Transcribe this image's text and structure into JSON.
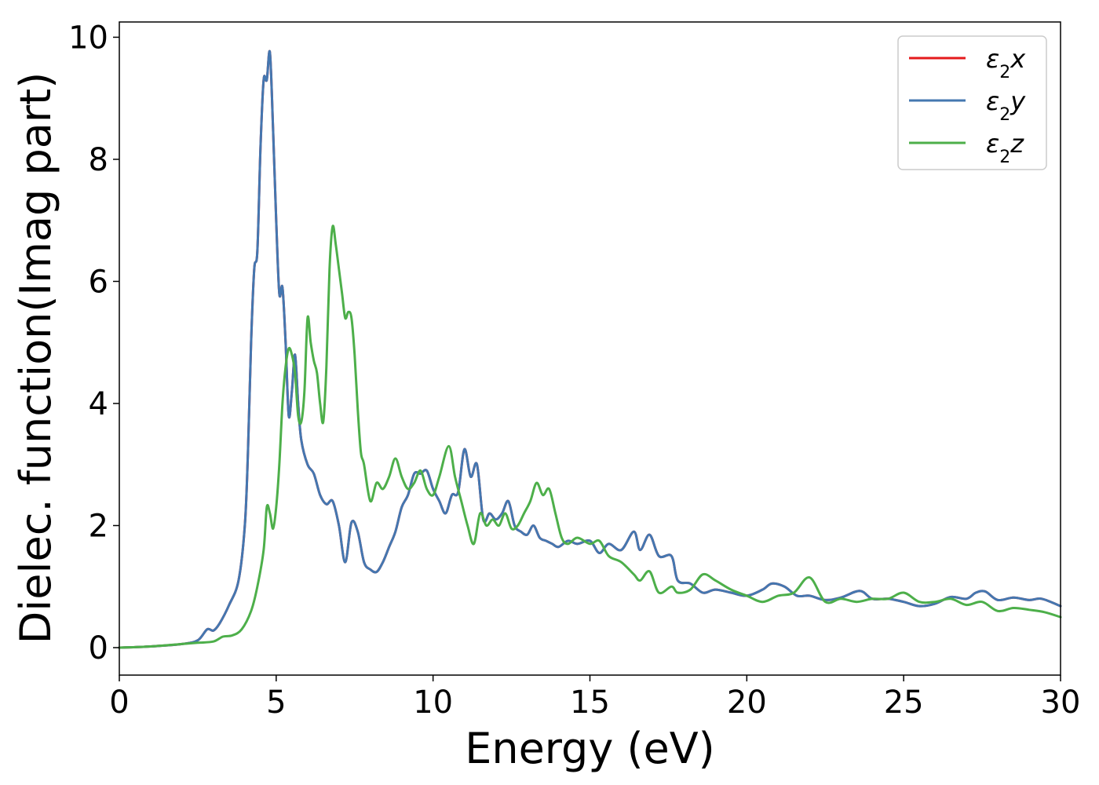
{
  "chart_data": {
    "type": "line",
    "xlabel": "Energy (eV)",
    "ylabel": "Dielec. function(Imag part)",
    "xlim": [
      0,
      30
    ],
    "ylim": [
      -0.45,
      10.25
    ],
    "xticks": [
      0,
      5,
      10,
      15,
      20,
      25,
      30
    ],
    "yticks": [
      0,
      2,
      4,
      6,
      8,
      10
    ],
    "grid": false,
    "legend_position": "top-right",
    "series": [
      {
        "name": "ε2x",
        "legend_base": "ε",
        "legend_sub": "2",
        "legend_var": "x",
        "color": "#e41a1c",
        "x": [
          0,
          1,
          2,
          2.5,
          2.8,
          3,
          3.2,
          3.5,
          3.8,
          4.0,
          4.1,
          4.2,
          4.3,
          4.4,
          4.5,
          4.6,
          4.7,
          4.8,
          4.9,
          5.0,
          5.1,
          5.2,
          5.3,
          5.4,
          5.5,
          5.6,
          5.7,
          5.8,
          6.0,
          6.2,
          6.4,
          6.6,
          6.8,
          7.0,
          7.2,
          7.4,
          7.6,
          7.8,
          8.0,
          8.2,
          8.4,
          8.6,
          8.8,
          9.0,
          9.2,
          9.4,
          9.6,
          9.8,
          10.0,
          10.2,
          10.4,
          10.6,
          10.8,
          11.0,
          11.2,
          11.4,
          11.6,
          11.8,
          12.0,
          12.2,
          12.4,
          12.6,
          12.8,
          13.0,
          13.2,
          13.4,
          13.6,
          13.8,
          14.0,
          14.3,
          14.6,
          15.0,
          15.3,
          15.6,
          16.0,
          16.4,
          16.6,
          16.9,
          17.2,
          17.6,
          17.8,
          18.2,
          18.6,
          19.0,
          19.5,
          20.0,
          20.5,
          20.8,
          21.2,
          21.6,
          22.0,
          22.5,
          23.0,
          23.6,
          24.0,
          24.5,
          25.0,
          25.5,
          26.0,
          26.5,
          27.0,
          27.3,
          27.6,
          28.0,
          28.5,
          29.0,
          29.4,
          30.0
        ],
        "y": [
          0,
          0.02,
          0.06,
          0.12,
          0.3,
          0.28,
          0.4,
          0.7,
          1.1,
          2.0,
          3.2,
          5.0,
          6.2,
          6.5,
          8.2,
          9.3,
          9.3,
          9.75,
          8.5,
          7.0,
          5.8,
          5.9,
          5.0,
          3.8,
          4.2,
          4.8,
          4.0,
          3.4,
          3.0,
          2.85,
          2.5,
          2.35,
          2.4,
          2.0,
          1.4,
          2.05,
          1.9,
          1.4,
          1.28,
          1.24,
          1.4,
          1.65,
          1.9,
          2.3,
          2.5,
          2.85,
          2.85,
          2.9,
          2.6,
          2.4,
          2.2,
          2.5,
          2.55,
          3.25,
          2.8,
          3.0,
          2.1,
          2.2,
          2.1,
          2.2,
          2.4,
          2.0,
          1.9,
          1.85,
          2.0,
          1.8,
          1.75,
          1.7,
          1.65,
          1.75,
          1.7,
          1.75,
          1.55,
          1.7,
          1.6,
          1.9,
          1.6,
          1.85,
          1.5,
          1.5,
          1.1,
          1.05,
          0.9,
          0.95,
          0.9,
          0.85,
          0.95,
          1.05,
          1.0,
          0.85,
          0.85,
          0.78,
          0.82,
          0.93,
          0.8,
          0.8,
          0.75,
          0.68,
          0.72,
          0.83,
          0.8,
          0.9,
          0.92,
          0.78,
          0.82,
          0.78,
          0.8,
          0.68
        ]
      },
      {
        "name": "ε2y",
        "legend_base": "ε",
        "legend_sub": "2",
        "legend_var": "y",
        "color": "#4477b0",
        "x": [
          0,
          1,
          2,
          2.5,
          2.8,
          3,
          3.2,
          3.5,
          3.8,
          4.0,
          4.1,
          4.2,
          4.3,
          4.4,
          4.5,
          4.6,
          4.7,
          4.8,
          4.9,
          5.0,
          5.1,
          5.2,
          5.3,
          5.4,
          5.5,
          5.6,
          5.7,
          5.8,
          6.0,
          6.2,
          6.4,
          6.6,
          6.8,
          7.0,
          7.2,
          7.4,
          7.6,
          7.8,
          8.0,
          8.2,
          8.4,
          8.6,
          8.8,
          9.0,
          9.2,
          9.4,
          9.6,
          9.8,
          10.0,
          10.2,
          10.4,
          10.6,
          10.8,
          11.0,
          11.2,
          11.4,
          11.6,
          11.8,
          12.0,
          12.2,
          12.4,
          12.6,
          12.8,
          13.0,
          13.2,
          13.4,
          13.6,
          13.8,
          14.0,
          14.3,
          14.6,
          15.0,
          15.3,
          15.6,
          16.0,
          16.4,
          16.6,
          16.9,
          17.2,
          17.6,
          17.8,
          18.2,
          18.6,
          19.0,
          19.5,
          20.0,
          20.5,
          20.8,
          21.2,
          21.6,
          22.0,
          22.5,
          23.0,
          23.6,
          24.0,
          24.5,
          25.0,
          25.5,
          26.0,
          26.5,
          27.0,
          27.3,
          27.6,
          28.0,
          28.5,
          29.0,
          29.4,
          30.0
        ],
        "y": [
          0,
          0.02,
          0.06,
          0.12,
          0.3,
          0.28,
          0.4,
          0.7,
          1.1,
          2.0,
          3.2,
          5.0,
          6.2,
          6.5,
          8.2,
          9.3,
          9.3,
          9.75,
          8.5,
          7.0,
          5.8,
          5.9,
          5.0,
          3.8,
          4.2,
          4.8,
          4.0,
          3.4,
          3.0,
          2.85,
          2.5,
          2.35,
          2.4,
          2.0,
          1.4,
          2.05,
          1.9,
          1.4,
          1.28,
          1.24,
          1.4,
          1.65,
          1.9,
          2.3,
          2.5,
          2.85,
          2.85,
          2.9,
          2.6,
          2.4,
          2.2,
          2.5,
          2.55,
          3.25,
          2.8,
          3.0,
          2.1,
          2.2,
          2.1,
          2.2,
          2.4,
          2.0,
          1.9,
          1.85,
          2.0,
          1.8,
          1.75,
          1.7,
          1.65,
          1.75,
          1.7,
          1.75,
          1.55,
          1.7,
          1.6,
          1.9,
          1.6,
          1.85,
          1.5,
          1.5,
          1.1,
          1.05,
          0.9,
          0.95,
          0.9,
          0.85,
          0.95,
          1.05,
          1.0,
          0.85,
          0.85,
          0.78,
          0.82,
          0.93,
          0.8,
          0.8,
          0.75,
          0.68,
          0.72,
          0.83,
          0.8,
          0.9,
          0.92,
          0.78,
          0.82,
          0.78,
          0.8,
          0.68
        ]
      },
      {
        "name": "ε2z",
        "legend_base": "ε",
        "legend_sub": "2",
        "legend_var": "z",
        "color": "#4daf4a",
        "x": [
          0,
          1,
          2,
          2.5,
          3.0,
          3.3,
          3.6,
          3.9,
          4.2,
          4.4,
          4.6,
          4.7,
          4.8,
          4.9,
          5.0,
          5.1,
          5.2,
          5.3,
          5.4,
          5.5,
          5.6,
          5.7,
          5.8,
          5.9,
          6.0,
          6.1,
          6.2,
          6.3,
          6.4,
          6.5,
          6.6,
          6.7,
          6.8,
          6.9,
          7.0,
          7.1,
          7.2,
          7.3,
          7.4,
          7.5,
          7.6,
          7.7,
          7.8,
          8.0,
          8.2,
          8.4,
          8.6,
          8.8,
          9.0,
          9.2,
          9.4,
          9.6,
          9.8,
          10.0,
          10.2,
          10.5,
          10.7,
          10.9,
          11.1,
          11.3,
          11.5,
          11.7,
          11.9,
          12.1,
          12.3,
          12.5,
          12.7,
          12.9,
          13.1,
          13.3,
          13.5,
          13.7,
          13.9,
          14.1,
          14.3,
          14.6,
          15.0,
          15.3,
          15.6,
          16.0,
          16.4,
          16.6,
          16.9,
          17.2,
          17.6,
          17.8,
          18.2,
          18.6,
          19.0,
          19.5,
          20.0,
          20.5,
          21.0,
          21.5,
          22.0,
          22.5,
          23.0,
          23.5,
          24.0,
          24.5,
          25.0,
          25.5,
          26.0,
          26.5,
          27.0,
          27.5,
          28.0,
          28.5,
          29.0,
          29.5,
          30.0
        ],
        "y": [
          0,
          0.02,
          0.06,
          0.08,
          0.1,
          0.18,
          0.2,
          0.3,
          0.6,
          1.0,
          1.6,
          2.3,
          2.2,
          1.95,
          2.3,
          3.0,
          4.0,
          4.6,
          4.9,
          4.8,
          4.5,
          3.8,
          3.7,
          4.2,
          5.4,
          5.0,
          4.7,
          4.5,
          4.0,
          3.7,
          4.6,
          6.2,
          6.9,
          6.6,
          6.2,
          5.8,
          5.4,
          5.5,
          5.4,
          4.8,
          3.9,
          3.2,
          3.0,
          2.4,
          2.7,
          2.6,
          2.8,
          3.1,
          2.8,
          2.6,
          2.7,
          2.9,
          2.6,
          2.5,
          2.8,
          3.3,
          2.8,
          2.4,
          2.0,
          1.7,
          2.2,
          2.0,
          2.1,
          2.0,
          2.2,
          1.95,
          2.0,
          2.2,
          2.4,
          2.7,
          2.5,
          2.6,
          2.2,
          1.8,
          1.7,
          1.8,
          1.7,
          1.75,
          1.5,
          1.4,
          1.2,
          1.1,
          1.25,
          0.9,
          1.0,
          0.9,
          0.95,
          1.2,
          1.1,
          0.95,
          0.85,
          0.75,
          0.85,
          0.9,
          1.15,
          0.75,
          0.8,
          0.75,
          0.8,
          0.8,
          0.9,
          0.75,
          0.75,
          0.8,
          0.7,
          0.75,
          0.6,
          0.65,
          0.62,
          0.58,
          0.5
        ]
      }
    ]
  }
}
